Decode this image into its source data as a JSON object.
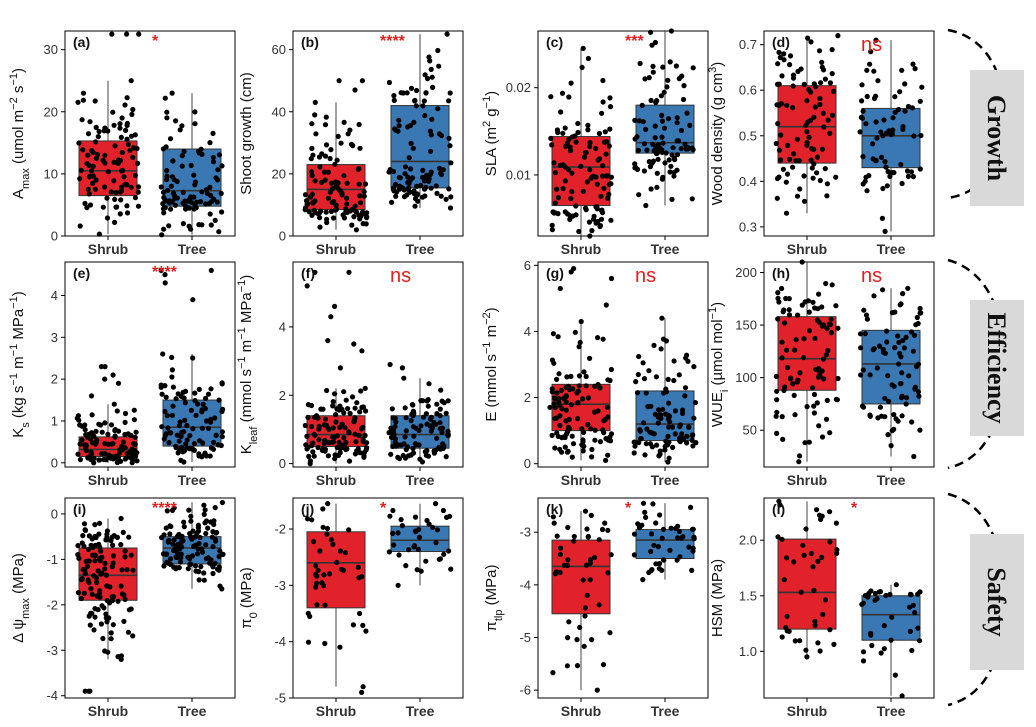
{
  "colors": {
    "shrub": "#e2222a",
    "tree": "#3a78b4",
    "signif": "#e21f1f",
    "point": "#000000",
    "band": "#d9d9d9"
  },
  "groups": [
    "Growth",
    "Efficiency",
    "Safety"
  ],
  "chart_data": [
    {
      "type": "box",
      "tag": "(a)",
      "ylabel": "A_max (umol m-2 s-1)",
      "ylabel_parts": [
        [
          "A",
          ""
        ],
        [
          "max",
          "sub"
        ],
        [
          " (umol m",
          ""
        ],
        [
          "−2",
          "sup"
        ],
        [
          " s",
          ""
        ],
        [
          "−1",
          "sup"
        ],
        [
          ")",
          ""
        ]
      ],
      "ylim": [
        0,
        33
      ],
      "yticks": [
        0,
        10,
        20,
        30
      ],
      "signif": "*",
      "categories": [
        "Shrub",
        "Tree"
      ],
      "series": [
        {
          "name": "Shrub",
          "q1": 6.5,
          "median": 10.5,
          "q3": 15.3,
          "min": 0.3,
          "max": 25,
          "outliers": [
            32.5,
            32.5,
            32.5
          ],
          "n": 100,
          "seed": 11
        },
        {
          "name": "Tree",
          "q1": 4.8,
          "median": 7.3,
          "q3": 14,
          "min": 0.2,
          "max": 23,
          "outliers": [],
          "n": 100,
          "seed": 12
        }
      ]
    },
    {
      "type": "box",
      "tag": "(b)",
      "ylabel": "Shoot growth (cm)",
      "ylabel_parts": [
        [
          "Shoot growth (cm)",
          ""
        ]
      ],
      "ylim": [
        0,
        66
      ],
      "yticks": [
        0,
        20,
        40,
        60
      ],
      "signif": "****",
      "categories": [
        "Shrub",
        "Tree"
      ],
      "series": [
        {
          "name": "Shrub",
          "q1": 8.5,
          "median": 15,
          "q3": 23,
          "min": 2,
          "max": 43,
          "outliers": [
            50,
            50,
            47
          ],
          "n": 110,
          "seed": 21
        },
        {
          "name": "Tree",
          "q1": 15.5,
          "median": 24,
          "q3": 42,
          "min": 9,
          "max": 65,
          "outliers": [],
          "n": 110,
          "seed": 22
        }
      ]
    },
    {
      "type": "box",
      "tag": "(c)",
      "ylabel": "SLA (m2 g-1)",
      "ylabel_parts": [
        [
          "SLA (m",
          ""
        ],
        [
          "2",
          "sup"
        ],
        [
          " g",
          ""
        ],
        [
          "−1",
          "sup"
        ],
        [
          ")",
          ""
        ]
      ],
      "ylim": [
        0.003,
        0.0265
      ],
      "yticks": [
        0.01,
        0.02
      ],
      "ytick_labels": [
        "0.01",
        "0.02"
      ],
      "signif": "***",
      "categories": [
        "Shrub",
        "Tree"
      ],
      "series": [
        {
          "name": "Shrub",
          "q1": 0.0065,
          "median": 0.0109,
          "q3": 0.0144,
          "min": 0.003,
          "max": 0.0245,
          "outliers": [],
          "n": 110,
          "seed": 31
        },
        {
          "name": "Tree",
          "q1": 0.0125,
          "median": 0.0137,
          "q3": 0.018,
          "min": 0.0065,
          "max": 0.0265,
          "outliers": [],
          "n": 100,
          "seed": 32
        }
      ]
    },
    {
      "type": "box",
      "tag": "(d)",
      "ylabel": "Wood density (g cm3)",
      "ylabel_parts": [
        [
          "Wood density (g cm",
          ""
        ],
        [
          "3",
          "sup"
        ],
        [
          ")",
          ""
        ]
      ],
      "ylim": [
        0.28,
        0.73
      ],
      "yticks": [
        0.3,
        0.4,
        0.5,
        0.6,
        0.7
      ],
      "signif": "ns",
      "categories": [
        "Shrub",
        "Tree"
      ],
      "series": [
        {
          "name": "Shrub",
          "q1": 0.44,
          "median": 0.52,
          "q3": 0.61,
          "min": 0.33,
          "max": 0.72,
          "outliers": [],
          "n": 90,
          "seed": 41
        },
        {
          "name": "Tree",
          "q1": 0.43,
          "median": 0.5,
          "q3": 0.56,
          "min": 0.29,
          "max": 0.71,
          "outliers": [],
          "n": 70,
          "seed": 42
        }
      ]
    },
    {
      "type": "box",
      "tag": "(e)",
      "ylabel": "K_s (kg s-1 m-1 MPa-1)",
      "ylabel_parts": [
        [
          "K",
          ""
        ],
        [
          "s",
          "sub"
        ],
        [
          " (kg s",
          ""
        ],
        [
          "−1",
          "sup"
        ],
        [
          " m",
          ""
        ],
        [
          "−1",
          "sup"
        ],
        [
          " MPa",
          ""
        ],
        [
          "−1",
          "sup"
        ],
        [
          ")",
          ""
        ]
      ],
      "ylim": [
        -0.1,
        4.8
      ],
      "yticks": [
        0,
        1,
        2,
        3,
        4
      ],
      "signif": "****",
      "categories": [
        "Shrub",
        "Tree"
      ],
      "series": [
        {
          "name": "Shrub",
          "q1": 0.15,
          "median": 0.32,
          "q3": 0.62,
          "min": 0.0,
          "max": 1.4,
          "outliers": [
            1.6,
            1.9,
            2.1,
            2.3,
            2.3,
            2.0
          ],
          "n": 110,
          "seed": 51
        },
        {
          "name": "Tree",
          "q1": 0.4,
          "median": 0.85,
          "q3": 1.5,
          "min": 0.02,
          "max": 2.6,
          "outliers": [
            3.9,
            4.3,
            4.5,
            4.6,
            4.6
          ],
          "n": 100,
          "seed": 52
        }
      ]
    },
    {
      "type": "box",
      "tag": "(f)",
      "ylabel": "K_leaf (mmol s-1 m-1 MPa-1)",
      "ylabel_parts": [
        [
          "K",
          ""
        ],
        [
          "leaf",
          "sub"
        ],
        [
          " (mmol s",
          ""
        ],
        [
          "−1",
          "sup"
        ],
        [
          " m",
          ""
        ],
        [
          "−1",
          "sup"
        ],
        [
          " MPa",
          ""
        ],
        [
          "−1",
          "sup"
        ],
        [
          ")",
          ""
        ]
      ],
      "ylim": [
        -0.1,
        5.9
      ],
      "yticks": [
        0,
        2,
        4
      ],
      "signif": "ns",
      "categories": [
        "Shrub",
        "Tree"
      ],
      "series": [
        {
          "name": "Shrub",
          "q1": 0.5,
          "median": 0.85,
          "q3": 1.4,
          "min": 0.0,
          "max": 2.2,
          "outliers": [
            2.8,
            3.3,
            3.5,
            3.6,
            4.3,
            4.6,
            5.2,
            5.6,
            5.6
          ],
          "n": 110,
          "seed": 61
        },
        {
          "name": "Tree",
          "q1": 0.45,
          "median": 0.85,
          "q3": 1.4,
          "min": 0.05,
          "max": 2.5,
          "outliers": [
            2.8,
            2.9
          ],
          "n": 100,
          "seed": 62
        }
      ]
    },
    {
      "type": "box",
      "tag": "(g)",
      "ylabel": "E (mmol s-1 m-2)",
      "ylabel_parts": [
        [
          "E (mmol s",
          ""
        ],
        [
          "−1",
          "sup"
        ],
        [
          " m",
          ""
        ],
        [
          "−2",
          "sup"
        ],
        [
          ")",
          ""
        ]
      ],
      "ylim": [
        -0.1,
        6.1
      ],
      "yticks": [
        0,
        2,
        4,
        6
      ],
      "signif": "ns",
      "categories": [
        "Shrub",
        "Tree"
      ],
      "series": [
        {
          "name": "Shrub",
          "q1": 1.0,
          "median": 1.8,
          "q3": 2.4,
          "min": 0.1,
          "max": 4.3,
          "outliers": [
            4.8,
            5.3,
            5.6,
            5.8,
            5.9
          ],
          "n": 110,
          "seed": 71
        },
        {
          "name": "Tree",
          "q1": 0.7,
          "median": 1.2,
          "q3": 2.2,
          "min": 0.05,
          "max": 4.4,
          "outliers": [],
          "n": 100,
          "seed": 72
        }
      ]
    },
    {
      "type": "box",
      "tag": "(h)",
      "ylabel": "WUE_i (umol mol-1)",
      "ylabel_parts": [
        [
          "WUE",
          ""
        ],
        [
          "i",
          "sub"
        ],
        [
          " (µmol mol",
          ""
        ],
        [
          "−1",
          "sup"
        ],
        [
          ")",
          ""
        ]
      ],
      "ylim": [
        15,
        210
      ],
      "yticks": [
        50,
        100,
        150,
        200
      ],
      "signif": "ns",
      "categories": [
        "Shrub",
        "Tree"
      ],
      "series": [
        {
          "name": "Shrub",
          "q1": 88,
          "median": 118,
          "q3": 158,
          "min": 20,
          "max": 210,
          "outliers": [],
          "n": 90,
          "seed": 81
        },
        {
          "name": "Tree",
          "q1": 75,
          "median": 113,
          "q3": 145,
          "min": 25,
          "max": 185,
          "outliers": [],
          "n": 80,
          "seed": 82
        }
      ]
    },
    {
      "type": "box",
      "tag": "(i)",
      "ylabel": "Δ ψmax (MPa)",
      "ylabel_parts": [
        [
          "Δ ψ",
          ""
        ],
        [
          "max",
          "sub"
        ],
        [
          " (MPa)",
          ""
        ]
      ],
      "ylim": [
        -4.05,
        0.35
      ],
      "yticks": [
        -4,
        -3,
        -2,
        -1,
        0
      ],
      "signif": "****",
      "categories": [
        "Shrub",
        "Tree"
      ],
      "series": [
        {
          "name": "Shrub",
          "q1": -1.9,
          "median": -1.35,
          "q3": -0.75,
          "min": -3.2,
          "max": -0.1,
          "outliers": [
            -3.9,
            -3.9,
            -3.9
          ],
          "n": 120,
          "seed": 91
        },
        {
          "name": "Tree",
          "q1": -1.1,
          "median": -0.75,
          "q3": -0.5,
          "min": -1.65,
          "max": 0.25,
          "outliers": [],
          "n": 120,
          "seed": 92
        }
      ]
    },
    {
      "type": "box",
      "tag": "(j)",
      "ylabel": "π0 (MPa)",
      "ylabel_parts": [
        [
          "π",
          ""
        ],
        [
          "0",
          "sub"
        ],
        [
          " (MPa)",
          ""
        ]
      ],
      "ylim": [
        -5.0,
        -1.45
      ],
      "yticks": [
        -5,
        -4,
        -3,
        -2
      ],
      "signif": "*",
      "categories": [
        "Shrub",
        "Tree"
      ],
      "series": [
        {
          "name": "Shrub",
          "q1": -3.4,
          "median": -2.6,
          "q3": -2.05,
          "min": -4.8,
          "max": -1.55,
          "outliers": [
            -4.9
          ],
          "n": 40,
          "seed": 101
        },
        {
          "name": "Tree",
          "q1": -2.4,
          "median": -2.2,
          "q3": -1.95,
          "min": -3.0,
          "max": -1.55,
          "outliers": [],
          "n": 35,
          "seed": 102
        }
      ]
    },
    {
      "type": "box",
      "tag": "(k)",
      "ylabel": "π_tlp (MPa)",
      "ylabel_parts": [
        [
          "π",
          ""
        ],
        [
          "tlp",
          "sub"
        ],
        [
          " (MPa)",
          ""
        ]
      ],
      "ylim": [
        -6.15,
        -2.35
      ],
      "yticks": [
        -6,
        -5,
        -4,
        -3
      ],
      "signif": "*",
      "categories": [
        "Shrub",
        "Tree"
      ],
      "series": [
        {
          "name": "Shrub",
          "q1": -4.55,
          "median": -3.65,
          "q3": -3.15,
          "min": -6.0,
          "max": -2.6,
          "outliers": [],
          "n": 45,
          "seed": 111
        },
        {
          "name": "Tree",
          "q1": -3.5,
          "median": -3.15,
          "q3": -2.95,
          "min": -3.9,
          "max": -2.45,
          "outliers": [],
          "n": 45,
          "seed": 112
        }
      ]
    },
    {
      "type": "box",
      "tag": "(l)",
      "ylabel": "HSM (MPa)",
      "ylabel_parts": [
        [
          "HSM (MPa)",
          ""
        ]
      ],
      "ylim": [
        0.58,
        2.38
      ],
      "yticks": [
        1.0,
        1.5,
        2.0
      ],
      "ytick_labels": [
        "1.0",
        "1.5",
        "2.0"
      ],
      "signif": "*",
      "categories": [
        "Shrub",
        "Tree"
      ],
      "series": [
        {
          "name": "Shrub",
          "q1": 1.2,
          "median": 1.53,
          "q3": 2.01,
          "min": 0.95,
          "max": 2.35,
          "outliers": [],
          "n": 40,
          "seed": 121
        },
        {
          "name": "Tree",
          "q1": 1.1,
          "median": 1.33,
          "q3": 1.5,
          "min": 0.6,
          "max": 1.6,
          "outliers": [],
          "n": 35,
          "seed": 122
        }
      ]
    }
  ]
}
